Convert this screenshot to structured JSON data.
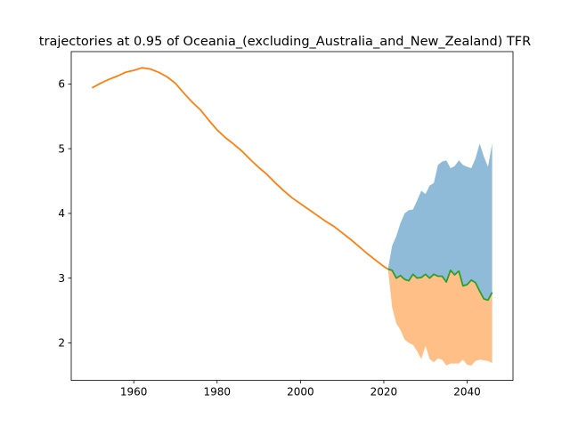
{
  "chart_data": {
    "type": "line",
    "title": "trajectories at 0.95 of Oceania_(excluding_Australia_and_New_Zealand) TFR",
    "xlabel": "",
    "ylabel": "",
    "xlim": [
      1945,
      2051
    ],
    "ylim": [
      1.42,
      6.5
    ],
    "x_ticks": [
      1960,
      1980,
      2000,
      2020,
      2040
    ],
    "y_ticks": [
      2,
      3,
      4,
      5,
      6
    ],
    "grid": false,
    "legend": "none",
    "colors": {
      "historical": "#ff7f0e",
      "median": "#2ca02c",
      "upper_band": "#1f77b4",
      "lower_band": "#ff7f0e",
      "band_opacity": 0.5
    },
    "historical": {
      "x": [
        1950,
        1952,
        1954,
        1956,
        1958,
        1960,
        1962,
        1964,
        1966,
        1968,
        1970,
        1972,
        1974,
        1976,
        1978,
        1980,
        1982,
        1984,
        1986,
        1988,
        1990,
        1992,
        1994,
        1996,
        1998,
        2000,
        2002,
        2004,
        2006,
        2008,
        2010,
        2012,
        2014,
        2016,
        2018,
        2020,
        2021
      ],
      "y": [
        5.94,
        6.01,
        6.07,
        6.12,
        6.18,
        6.21,
        6.25,
        6.23,
        6.18,
        6.11,
        6.01,
        5.86,
        5.72,
        5.6,
        5.44,
        5.29,
        5.17,
        5.07,
        4.96,
        4.83,
        4.71,
        4.6,
        4.47,
        4.35,
        4.24,
        4.15,
        4.06,
        3.97,
        3.88,
        3.8,
        3.7,
        3.6,
        3.49,
        3.38,
        3.28,
        3.18,
        3.14
      ]
    },
    "projection": {
      "x": [
        2021,
        2022,
        2023,
        2024,
        2025,
        2026,
        2027,
        2028,
        2029,
        2030,
        2031,
        2032,
        2033,
        2034,
        2035,
        2036,
        2037,
        2038,
        2039,
        2040,
        2041,
        2042,
        2043,
        2044,
        2045,
        2046
      ],
      "median": [
        3.14,
        3.12,
        3.0,
        3.04,
        2.98,
        2.96,
        3.06,
        3.0,
        3.01,
        3.06,
        3.0,
        3.06,
        3.03,
        3.03,
        2.94,
        3.12,
        3.05,
        3.11,
        2.88,
        2.9,
        2.97,
        2.93,
        2.8,
        2.68,
        2.66,
        2.78
      ],
      "upper": [
        3.14,
        3.5,
        3.65,
        3.85,
        4.0,
        4.05,
        4.06,
        4.2,
        4.35,
        4.3,
        4.43,
        4.47,
        4.75,
        4.8,
        4.82,
        4.7,
        4.73,
        4.82,
        4.75,
        4.72,
        4.7,
        4.85,
        5.08,
        4.88,
        4.72,
        5.08
      ],
      "lower": [
        3.14,
        2.55,
        2.3,
        2.2,
        2.05,
        2.0,
        1.97,
        1.87,
        1.75,
        1.95,
        1.75,
        1.7,
        1.76,
        1.74,
        1.65,
        1.68,
        1.68,
        1.68,
        1.74,
        1.66,
        1.65,
        1.72,
        1.74,
        1.73,
        1.72,
        1.69
      ]
    }
  }
}
